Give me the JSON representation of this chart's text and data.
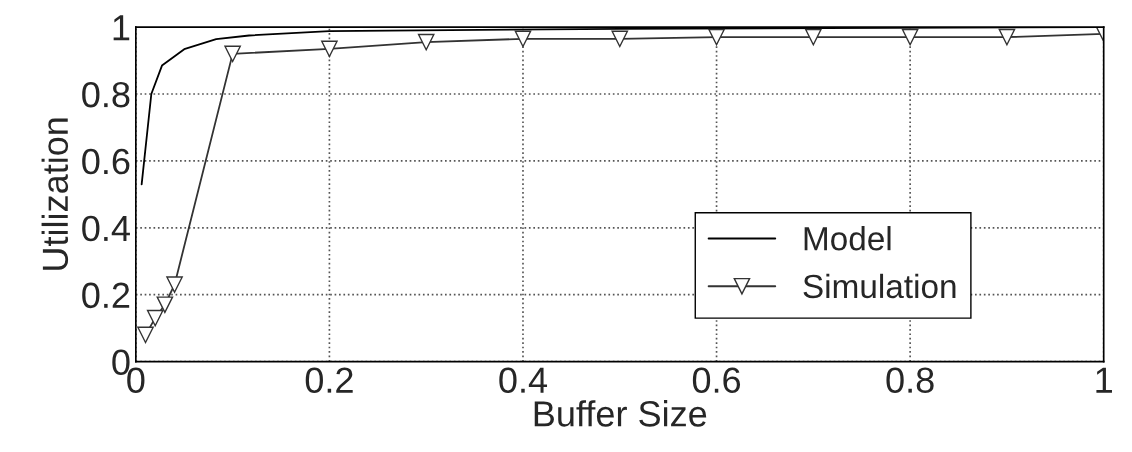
{
  "chart_data": {
    "type": "line",
    "xlabel": "Buffer Size",
    "ylabel": "Utilization",
    "xlim": [
      0,
      1
    ],
    "ylim": [
      0,
      1
    ],
    "xticks": [
      0,
      0.2,
      0.4,
      0.6,
      0.8,
      1
    ],
    "yticks": [
      0,
      0.2,
      0.4,
      0.6,
      0.8,
      1
    ],
    "grid": true,
    "legend": "bottom right",
    "series": [
      {
        "name": "Model",
        "color": "#000000",
        "marker": "none",
        "x": [
          0.006,
          0.016,
          0.027,
          0.05,
          0.083,
          0.117,
          0.2,
          0.5,
          1.0
        ],
        "values": [
          0.53,
          0.8,
          0.885,
          0.934,
          0.964,
          0.975,
          0.988,
          0.995,
          1.0
        ]
      },
      {
        "name": "Simulation",
        "color": "#333333",
        "marker": "triangle",
        "x": [
          0.01,
          0.02,
          0.03,
          0.04,
          0.1,
          0.2,
          0.3,
          0.4,
          0.5,
          0.6,
          0.7,
          0.8,
          0.9,
          1.0
        ],
        "values": [
          0.08,
          0.13,
          0.17,
          0.23,
          0.92,
          0.935,
          0.955,
          0.965,
          0.965,
          0.97,
          0.97,
          0.97,
          0.97,
          0.98
        ]
      }
    ]
  }
}
